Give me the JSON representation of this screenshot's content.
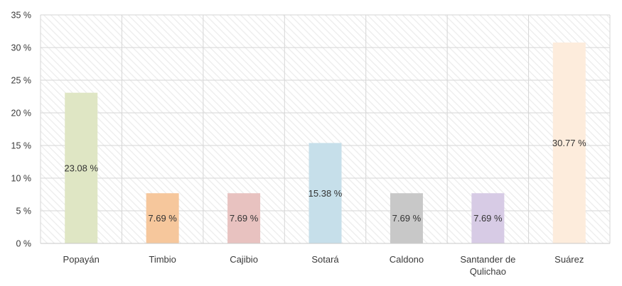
{
  "chart_data": {
    "type": "bar",
    "categories": [
      "Popayán",
      "Timbio",
      "Cajibio",
      "Sotará",
      "Caldono",
      "Santander de Qulichao",
      "Suárez"
    ],
    "category_lines": [
      [
        "Popayán"
      ],
      [
        "Timbio"
      ],
      [
        "Cajibio"
      ],
      [
        "Sotará"
      ],
      [
        "Caldono"
      ],
      [
        "Santander de",
        "Qulichao"
      ],
      [
        "Suárez"
      ]
    ],
    "values": [
      23.08,
      7.69,
      7.69,
      15.38,
      7.69,
      7.69,
      30.77
    ],
    "data_labels": [
      "23.08 %",
      "7.69 %",
      "7.69 %",
      "15.38 %",
      "7.69 %",
      "7.69 %",
      "30.77 %"
    ],
    "colors": [
      "#dfe6c4",
      "#f6c79c",
      "#e8c2c0",
      "#c6dfea",
      "#c8c8c8",
      "#d7cbe5",
      "#fdecdc"
    ],
    "yticks": [
      "0 %",
      "5 %",
      "10 %",
      "15 %",
      "20 %",
      "25 %",
      "30 %",
      "35 %"
    ],
    "ylim": [
      0,
      35
    ],
    "grid": true
  }
}
